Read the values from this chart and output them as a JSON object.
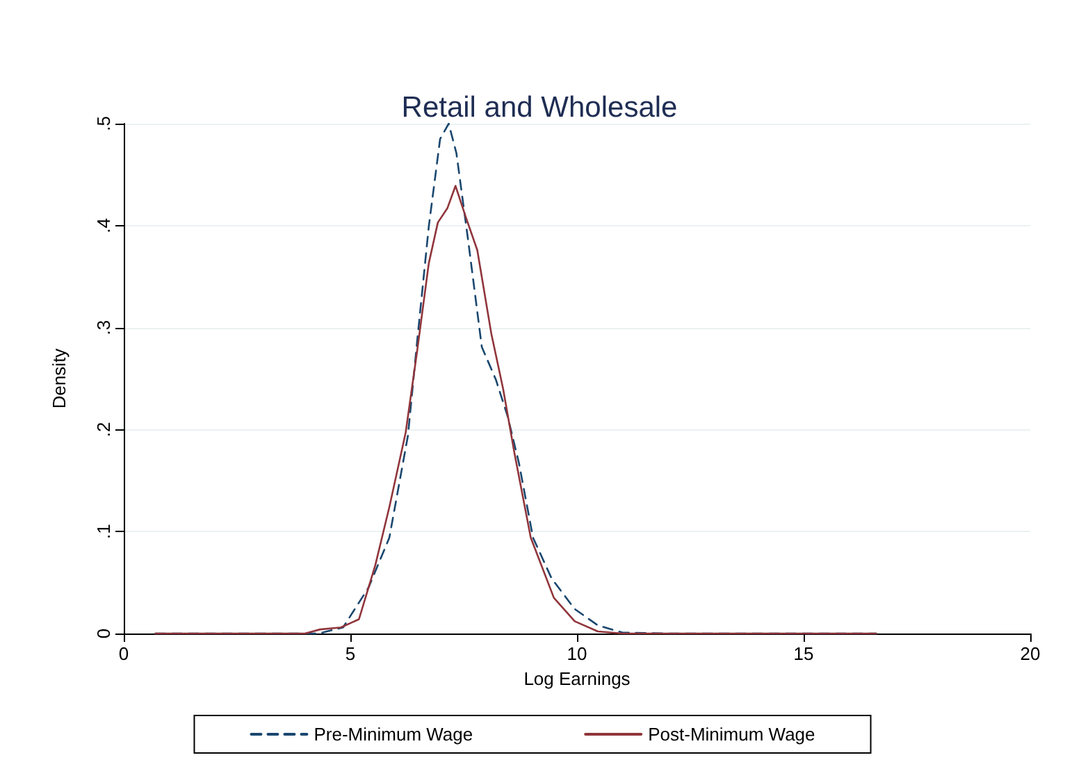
{
  "chart_data": {
    "type": "line",
    "title": "Retail and Wholesale",
    "xlabel": "Log Earnings",
    "ylabel": "Density",
    "xlim": [
      0,
      20
    ],
    "xticks": [
      0,
      5,
      10,
      15,
      20
    ],
    "ylim": [
      0,
      0.5
    ],
    "yticks": [
      {
        "value": 0,
        "label": "0"
      },
      {
        "value": 0.1,
        "label": ".1"
      },
      {
        "value": 0.2,
        "label": ".2"
      },
      {
        "value": 0.3,
        "label": ".3"
      },
      {
        "value": 0.4,
        "label": ".4"
      },
      {
        "value": 0.5,
        "label": ".5"
      }
    ],
    "grid": "y",
    "legend": "bottom",
    "marker": "none",
    "series": [
      {
        "name": "Pre-Minimum Wage",
        "color": "#1a476f",
        "line_style": "dashed",
        "x": [
          0.7,
          2,
          3,
          4,
          4.3,
          4.84,
          5.4,
          5.86,
          6.27,
          6.47,
          6.73,
          6.98,
          7.17,
          7.34,
          7.6,
          7.9,
          8.21,
          8.47,
          8.72,
          9.03,
          9.44,
          9.95,
          10.46,
          11,
          12,
          14,
          16.6
        ],
        "values": [
          0,
          0,
          0,
          0,
          0,
          0.006,
          0.045,
          0.094,
          0.194,
          0.285,
          0.399,
          0.485,
          0.5,
          0.471,
          0.385,
          0.281,
          0.249,
          0.213,
          0.167,
          0.094,
          0.054,
          0.024,
          0.008,
          0.001,
          0,
          0,
          0
        ]
      },
      {
        "name": "Post-Minimum Wage",
        "color": "#90353b",
        "line_style": "solid",
        "x": [
          0.7,
          2,
          3,
          4,
          4.33,
          4.79,
          5.19,
          5.55,
          5.86,
          6.22,
          6.47,
          6.73,
          6.93,
          7.14,
          7.32,
          7.55,
          7.8,
          8.11,
          8.37,
          8.62,
          8.98,
          9.49,
          9.95,
          10.46,
          11,
          12,
          14,
          16.6
        ],
        "values": [
          0,
          0,
          0,
          0,
          0.004,
          0.006,
          0.014,
          0.067,
          0.124,
          0.197,
          0.276,
          0.363,
          0.403,
          0.417,
          0.439,
          0.408,
          0.376,
          0.294,
          0.24,
          0.177,
          0.094,
          0.035,
          0.012,
          0.002,
          0,
          0,
          0,
          0
        ]
      }
    ]
  }
}
